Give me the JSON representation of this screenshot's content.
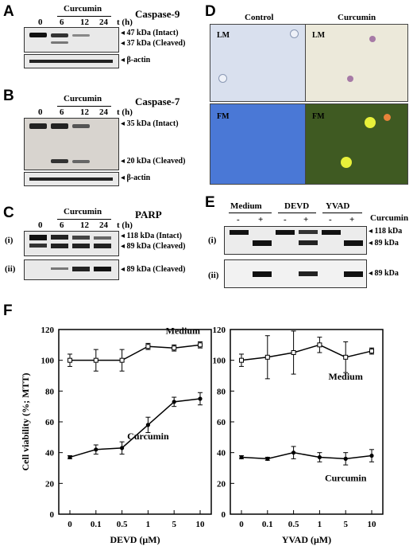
{
  "panels": {
    "A": {
      "label": "A",
      "title": "Caspase-9",
      "treatment": "Curcumin",
      "time_unit": "t (h)",
      "lanes": [
        "0",
        "6",
        "12",
        "24"
      ],
      "bands": [
        "47 kDa (Intact)",
        "37 kDa (Cleaved)"
      ],
      "loading": "β-actin"
    },
    "B": {
      "label": "B",
      "title": "Caspase-7",
      "treatment": "Curcumin",
      "time_unit": "t (h)",
      "lanes": [
        "0",
        "6",
        "12",
        "24"
      ],
      "bands": [
        "35 kDa (Intact)",
        "20 kDa (Cleaved)"
      ],
      "loading": "β-actin"
    },
    "C": {
      "label": "C",
      "title": "PARP",
      "treatment": "Curcumin",
      "time_unit": "t (h)",
      "lanes": [
        "0",
        "6",
        "12",
        "24"
      ],
      "row_labels": [
        "(i)",
        "(ii)"
      ],
      "bands": [
        "118 kDa (Intact)",
        "89 kDa (Cleaved)",
        "89 kDa (Cleaved)"
      ]
    },
    "D": {
      "label": "D",
      "col_control": "Control",
      "col_curcumin": "Curcumin",
      "row_lm": "LM",
      "row_fm": "FM",
      "colors": {
        "lm_control": "#d9e0ee",
        "lm_curcumin": "#ece9da",
        "fm_control": "#4a78d6",
        "fm_curcumin": "#3f5a22"
      }
    },
    "E": {
      "label": "E",
      "groups": [
        "Medium",
        "DEVD",
        "YVAD"
      ],
      "signs": [
        "-",
        "+",
        "-",
        "+",
        "-",
        "+"
      ],
      "treatment": "Curcumin",
      "row_labels": [
        "(i)",
        "(ii)"
      ],
      "bands": [
        "118 kDa",
        "89 kDa",
        "89 kDa"
      ]
    },
    "F": {
      "label": "F",
      "ylabel": "Cell viability (%; MTT)",
      "yticks": [
        "0",
        "20",
        "40",
        "60",
        "80",
        "100",
        "120"
      ],
      "xticks": [
        "0",
        "0.1",
        "0.5",
        "1",
        "5",
        "10"
      ],
      "left_xlabel": "DEVD (μM)",
      "right_xlabel": "YVAD (μM)",
      "left_medium_label": "Medium",
      "left_curcumin_label": "Curcumin",
      "right_medium_label": "Medium",
      "right_curcumin_label": "Curcumin"
    }
  },
  "chart_data": [
    {
      "type": "line",
      "xlabel": "DEVD (μM)",
      "ylabel": "Cell viability (%; MTT)",
      "x": [
        "0",
        "0.1",
        "0.5",
        "1",
        "5",
        "10"
      ],
      "ylim": [
        0,
        120
      ],
      "series": [
        {
          "name": "Medium",
          "values": [
            100,
            100,
            100,
            109,
            108,
            110
          ],
          "errors": [
            4,
            7,
            7,
            2,
            2,
            2
          ]
        },
        {
          "name": "Curcumin",
          "values": [
            37,
            42,
            43,
            58,
            73,
            75
          ],
          "errors": [
            1,
            3,
            4,
            5,
            3,
            4
          ]
        }
      ]
    },
    {
      "type": "line",
      "xlabel": "YVAD (μM)",
      "ylabel": "",
      "x": [
        "0",
        "0.1",
        "0.5",
        "1",
        "5",
        "10"
      ],
      "ylim": [
        0,
        120
      ],
      "series": [
        {
          "name": "Medium",
          "values": [
            100,
            102,
            105,
            110,
            102,
            106
          ],
          "errors": [
            4,
            14,
            14,
            5,
            10,
            2
          ]
        },
        {
          "name": "Curcumin",
          "values": [
            37,
            36,
            40,
            37,
            36,
            38
          ],
          "errors": [
            1,
            1,
            4,
            3,
            4,
            4
          ]
        }
      ]
    }
  ]
}
